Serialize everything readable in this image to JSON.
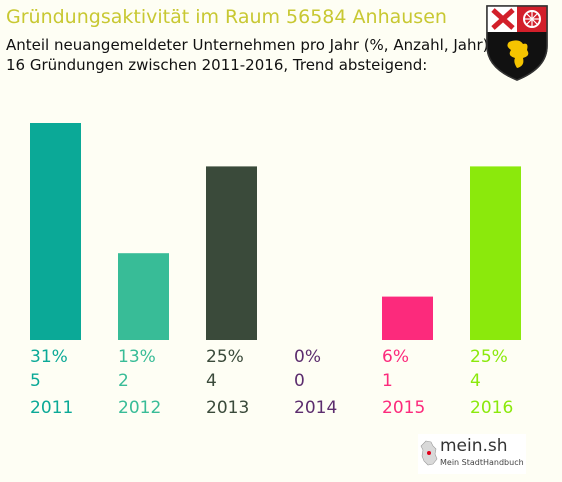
{
  "header": {
    "title": "Gründungsaktivität im Raum 56584 Anhausen",
    "subtitle_line1": "Anteil neuangemeldeter Unternehmen pro Jahr (%, Anzahl, Jahr)",
    "subtitle_line2": "16 Gründungen zwischen 2011-2016, Trend absteigend:"
  },
  "crest": {
    "icon": "rhineland-palatinate-coat-of-arms-icon"
  },
  "logo": {
    "name": "mein.sh",
    "tagline": "Mein StadtHandbuch"
  },
  "chart_data": {
    "type": "bar",
    "categories": [
      "2011",
      "2012",
      "2013",
      "2014",
      "2015",
      "2016"
    ],
    "percent_labels": [
      "31%",
      "13%",
      "25%",
      "0%",
      "6%",
      "25%"
    ],
    "values": [
      5,
      2,
      4,
      0,
      1,
      4
    ],
    "colors": [
      "#0ba997",
      "#38bc97",
      "#3a4a3a",
      "#5c2d6e",
      "#fc2a7c",
      "#8be90c"
    ],
    "ylim": [
      0,
      5
    ]
  }
}
